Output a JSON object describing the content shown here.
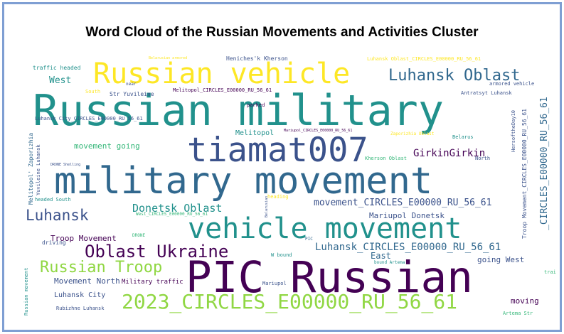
{
  "title": "Word Cloud of the Russian Movements and Activities Cluster",
  "words": {
    "russian_military": "Russian military",
    "military_movement": "military movement",
    "pic_russian": "PIC Russian",
    "russian_vehicle": "Russian vehicle",
    "tiamat007": "tiamat007",
    "vehicle_movement": "vehicle movement",
    "circles_2023": "2023_CIRCLES_E00000_RU_56_61",
    "luhansk_oblast": "Luhansk Oblast",
    "oblast_ukraine": "Oblast Ukraine",
    "russian_troop": "Russian Troop",
    "luhansk": "Luhansk",
    "donetsk_oblast": "Donetsk Oblast",
    "girkin": "GirkinGirkin",
    "movement_circles": "movement_CIRCLES_E00000_RU_56_61",
    "luhansk_circles": "Luhansk_CIRCLES_E00000_RU_56_61",
    "mariupol_donetsk": "Mariupol Donetsk",
    "troop_movement": "Troop Movement",
    "movement_going": "movement going",
    "movement_north": "Movement North",
    "luhansk_city": "Luhansk City",
    "west": "West",
    "east": "East",
    "going_west": "going West",
    "moving": "moving",
    "melitopol": "Melitopol",
    "traffic_headed": "traffic headed",
    "military_traffic": "Military traffic",
    "luhansk_city_circles": "Luhansk City_CIRCLES_E00000_RU_56_61",
    "luhansk_oblast_circles": "Luhansk Oblast_CIRCLES_E00000_RU_56_61",
    "melitopol_circles": "Melitopol_CIRCLES_E00000_RU_56_61",
    "mariupol_circles": "Mariupol_CIRCLES_E00000_RU_56_61",
    "west_circles": "West_CIRCLES_E00000_RU_56_61",
    "str_yuvileine": "Str Yuvileine",
    "armored_vehicle": "armored vehicle",
    "antratsyt_luhansk": "Antratsyt Luhansk",
    "heniches_kherson": "Heniches'k Kherson",
    "belarusian_armored": "Belarusian armored",
    "parked": "parked",
    "zaporizhia_oblast": "Zaporizhia Oblast",
    "belarus": "Belarus",
    "kherson_oblast": "Kherson Oblast",
    "north": "North",
    "heading": "heading",
    "headed_south": "headed South",
    "driving": "driving",
    "mariupol": "Mariupol",
    "train": "train",
    "artema_str": "Artema Str",
    "rubizhne_luhansk": "Rubizhne Luhansk",
    "bound_artema": "bound Artema",
    "w_bound": "W bound",
    "south": "South",
    "near": "near",
    "pic": "PIC",
    "drone": "DRONE",
    "drone_shelling": "DRONE Shelling",
    "russian_movement_v": "Russian movement",
    "melitopol_zaporizhia_v": "Melitopol' Zaporizhia",
    "yuvileine_luhansk_v": "Yuvileine Luhansk",
    "circles_v": "_CIRCLES_E00000_RU_56_61",
    "troop_movement_circles_v": "Troop Movement_CIRCLES_E00000_RU_56_61",
    "hersoftheday_v": "HersoftheDay10",
    "belarusian_v": "Belarusian"
  },
  "palette": {
    "purple_dark": "#440154",
    "indigo": "#3b528b",
    "blue": "#31688e",
    "teal": "#21918c",
    "green": "#35b779",
    "lime": "#90d743",
    "yellow": "#fde725"
  }
}
